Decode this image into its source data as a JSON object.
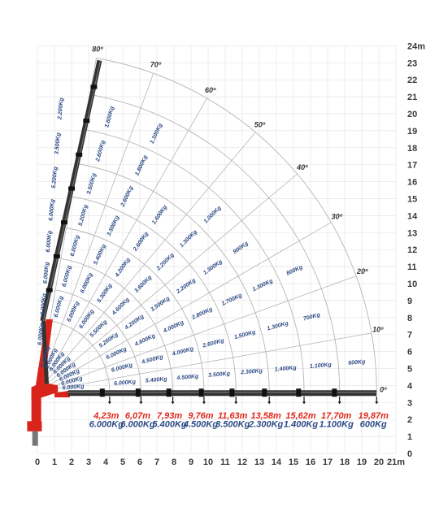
{
  "axes": {
    "x_ticks": [
      "0",
      "1",
      "2",
      "3",
      "4",
      "5",
      "6",
      "7",
      "8",
      "9",
      "10",
      "11",
      "12",
      "13",
      "14",
      "15",
      "16",
      "17",
      "18",
      "19",
      "20",
      "21m"
    ],
    "y_ticks": [
      "0",
      "1",
      "2",
      "3",
      "4",
      "5",
      "6",
      "7",
      "8",
      "9",
      "10",
      "11",
      "12",
      "13",
      "14",
      "15",
      "16",
      "17",
      "18",
      "19",
      "20",
      "21",
      "22",
      "23",
      "24m"
    ]
  },
  "angles": [
    {
      "deg": 80,
      "label": "80º"
    },
    {
      "deg": 70,
      "label": "70º"
    },
    {
      "deg": 60,
      "label": "60º"
    },
    {
      "deg": 50,
      "label": "50º"
    },
    {
      "deg": 40,
      "label": "40º"
    },
    {
      "deg": 30,
      "label": "30º"
    },
    {
      "deg": 20,
      "label": "20º"
    },
    {
      "deg": 10,
      "label": "10º"
    },
    {
      "deg": 0,
      "label": "0º"
    }
  ],
  "radial_reaches_m": [
    4.23,
    6.07,
    7.93,
    9.76,
    11.63,
    13.58,
    15.62,
    17.7,
    19.87
  ],
  "bottom_reaches": [
    "4,23m",
    "6,07m",
    "7,93m",
    "9,76m",
    "11,63m",
    "13,58m",
    "15,62m",
    "17,70m",
    "19,87m"
  ],
  "bottom_capacities": [
    "6.000Kg",
    "6.000Kg",
    "5.400Kg",
    "4.500Kg",
    "3.500Kg",
    "2.300Kg",
    "1.400Kg",
    "1.100Kg",
    "600Kg"
  ],
  "load_labels": [
    {
      "text": "6.000Kg",
      "sector": 8,
      "ring": 0.8
    },
    {
      "text": "6.000Kg",
      "sector": 0,
      "ring": 0.5
    },
    {
      "text": "6.000Kg",
      "sector": 0,
      "ring": 1.5
    },
    {
      "text": "5.400Kg",
      "sector": 0,
      "ring": 2.5
    },
    {
      "text": "4.500Kg",
      "sector": 0,
      "ring": 3.5
    },
    {
      "text": "3.500Kg",
      "sector": 0,
      "ring": 4.5
    },
    {
      "text": "2.300Kg",
      "sector": 0,
      "ring": 5.5
    },
    {
      "text": "1.400Kg",
      "sector": 0,
      "ring": 6.5
    },
    {
      "text": "1.100Kg",
      "sector": 0,
      "ring": 7.5
    },
    {
      "text": "600Kg",
      "sector": 0,
      "ring": 8.5
    },
    {
      "text": "6.000Kg",
      "sector": 1,
      "ring": 0.5
    },
    {
      "text": "6.000Kg",
      "sector": 1,
      "ring": 1.5
    },
    {
      "text": "4.500Kg",
      "sector": 1,
      "ring": 2.5
    },
    {
      "text": "4.000Kg",
      "sector": 1,
      "ring": 3.5
    },
    {
      "text": "2.600Kg",
      "sector": 1,
      "ring": 4.5
    },
    {
      "text": "1.500Kg",
      "sector": 1,
      "ring": 5.5
    },
    {
      "text": "1.300Kg",
      "sector": 1,
      "ring": 6.5
    },
    {
      "text": "700Kg",
      "sector": 1,
      "ring": 7.5
    },
    {
      "text": "6.000Kg",
      "sector": 2,
      "ring": 0.5
    },
    {
      "text": "6.000Kg",
      "sector": 2,
      "ring": 1.5
    },
    {
      "text": "4.600Kg",
      "sector": 2,
      "ring": 2.5
    },
    {
      "text": "4.000Kg",
      "sector": 2,
      "ring": 3.5
    },
    {
      "text": "2.800Kg",
      "sector": 2,
      "ring": 4.5
    },
    {
      "text": "1.700Kg",
      "sector": 2,
      "ring": 5.5
    },
    {
      "text": "1.300Kg",
      "sector": 2,
      "ring": 6.5
    },
    {
      "text": "800Kg",
      "sector": 2,
      "ring": 7.5
    },
    {
      "text": "6.000Kg",
      "sector": 3,
      "ring": 0.5
    },
    {
      "text": "5.200Kg",
      "sector": 3,
      "ring": 1.5
    },
    {
      "text": "4.200Kg",
      "sector": 3,
      "ring": 2.5
    },
    {
      "text": "3.500Kg",
      "sector": 3,
      "ring": 3.5
    },
    {
      "text": "2.200Kg",
      "sector": 3,
      "ring": 4.5
    },
    {
      "text": "1.300Kg",
      "sector": 3,
      "ring": 5.5
    },
    {
      "text": "900Kg",
      "sector": 3,
      "ring": 6.5
    },
    {
      "text": "6.000Kg",
      "sector": 4,
      "ring": 0.5
    },
    {
      "text": "5.500Kg",
      "sector": 4,
      "ring": 1.5
    },
    {
      "text": "4.600Kg",
      "sector": 4,
      "ring": 2.5
    },
    {
      "text": "3.600Kg",
      "sector": 4,
      "ring": 3.5
    },
    {
      "text": "2.200Kg",
      "sector": 4,
      "ring": 4.5
    },
    {
      "text": "1.300Kg",
      "sector": 4,
      "ring": 5.5
    },
    {
      "text": "1.000Kg",
      "sector": 4,
      "ring": 6.5
    },
    {
      "text": "6.000Kg",
      "sector": 5,
      "ring": 0.5
    },
    {
      "text": "6.000Kg",
      "sector": 5,
      "ring": 1.5
    },
    {
      "text": "5.300Kg",
      "sector": 5,
      "ring": 2.5
    },
    {
      "text": "4.200Kg",
      "sector": 5,
      "ring": 3.5
    },
    {
      "text": "2.600Kg",
      "sector": 5,
      "ring": 4.5
    },
    {
      "text": "1.600Kg",
      "sector": 5,
      "ring": 5.5
    },
    {
      "text": "6.000Kg",
      "sector": 6,
      "ring": 0.5
    },
    {
      "text": "6.000Kg",
      "sector": 6,
      "ring": 1.5
    },
    {
      "text": "6.000Kg",
      "sector": 6,
      "ring": 2.5
    },
    {
      "text": "5.400Kg",
      "sector": 6,
      "ring": 3.5
    },
    {
      "text": "3.500Kg",
      "sector": 6,
      "ring": 4.5
    },
    {
      "text": "2.600Kg",
      "sector": 6,
      "ring": 5.5
    },
    {
      "text": "1.800Kg",
      "sector": 6,
      "ring": 6.5
    },
    {
      "text": "1.100Kg",
      "sector": 6,
      "ring": 7.5
    },
    {
      "text": "6.000Kg",
      "sector": 7,
      "ring": 0.5
    },
    {
      "text": "6.000Kg",
      "sector": 7,
      "ring": 1.5
    },
    {
      "text": "6.000Kg",
      "sector": 7,
      "ring": 2.5
    },
    {
      "text": "6.000Kg",
      "sector": 7,
      "ring": 3.5
    },
    {
      "text": "5.200Kg",
      "sector": 7,
      "ring": 4.5
    },
    {
      "text": "3.500Kg",
      "sector": 7,
      "ring": 5.5
    },
    {
      "text": "2.600Kg",
      "sector": 7,
      "ring": 6.5
    },
    {
      "text": "1.600Kg",
      "sector": 7,
      "ring": 7.5
    },
    {
      "text": "6.000Kg",
      "sector": 8,
      "ring": 1.5
    },
    {
      "text": "6.000Kg",
      "sector": 8,
      "ring": 2.5
    },
    {
      "text": "6.000Kg",
      "sector": 8,
      "ring": 3.5
    },
    {
      "text": "6.000Kg",
      "sector": 8,
      "ring": 4.5
    },
    {
      "text": "5.200Kg",
      "sector": 8,
      "ring": 5.5
    },
    {
      "text": "3.500Kg",
      "sector": 8,
      "ring": 6.5
    },
    {
      "text": "2.200Kg",
      "sector": 8,
      "ring": 7.5
    }
  ],
  "colors": {
    "grid": "#e6e6e6",
    "arc": "#b5b5b5",
    "boom": "#333333",
    "base": "#d8241b",
    "reach_text": "#e0281b",
    "capacity_text": "#2c4a86"
  }
}
